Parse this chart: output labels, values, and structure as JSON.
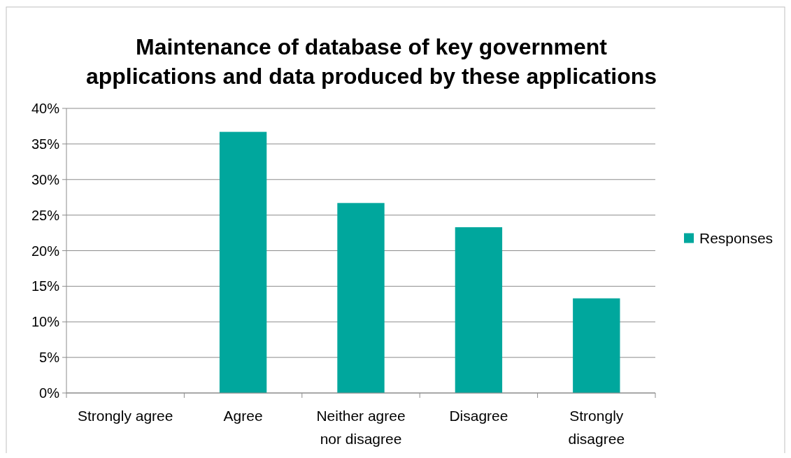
{
  "chart_data": {
    "type": "bar",
    "title": "Maintenance of database of key government applications and data produced by these applications",
    "categories": [
      "Strongly agree",
      "Agree",
      "Neither agree nor disagree",
      "Disagree",
      "Strongly disagree"
    ],
    "series": [
      {
        "name": "Responses",
        "color": "#00a79d",
        "values": [
          0,
          36.7,
          26.7,
          23.3,
          13.3
        ]
      }
    ],
    "ylim": [
      0,
      40
    ],
    "yticks": [
      {
        "value": 0,
        "label": "0%"
      },
      {
        "value": 5,
        "label": "5%"
      },
      {
        "value": 10,
        "label": "10%"
      },
      {
        "value": 15,
        "label": "15%"
      },
      {
        "value": 20,
        "label": "20%"
      },
      {
        "value": 25,
        "label": "25%"
      },
      {
        "value": 30,
        "label": "30%"
      },
      {
        "value": 35,
        "label": "35%"
      },
      {
        "value": 40,
        "label": "40%"
      }
    ],
    "grid": "y",
    "legend": "right"
  }
}
